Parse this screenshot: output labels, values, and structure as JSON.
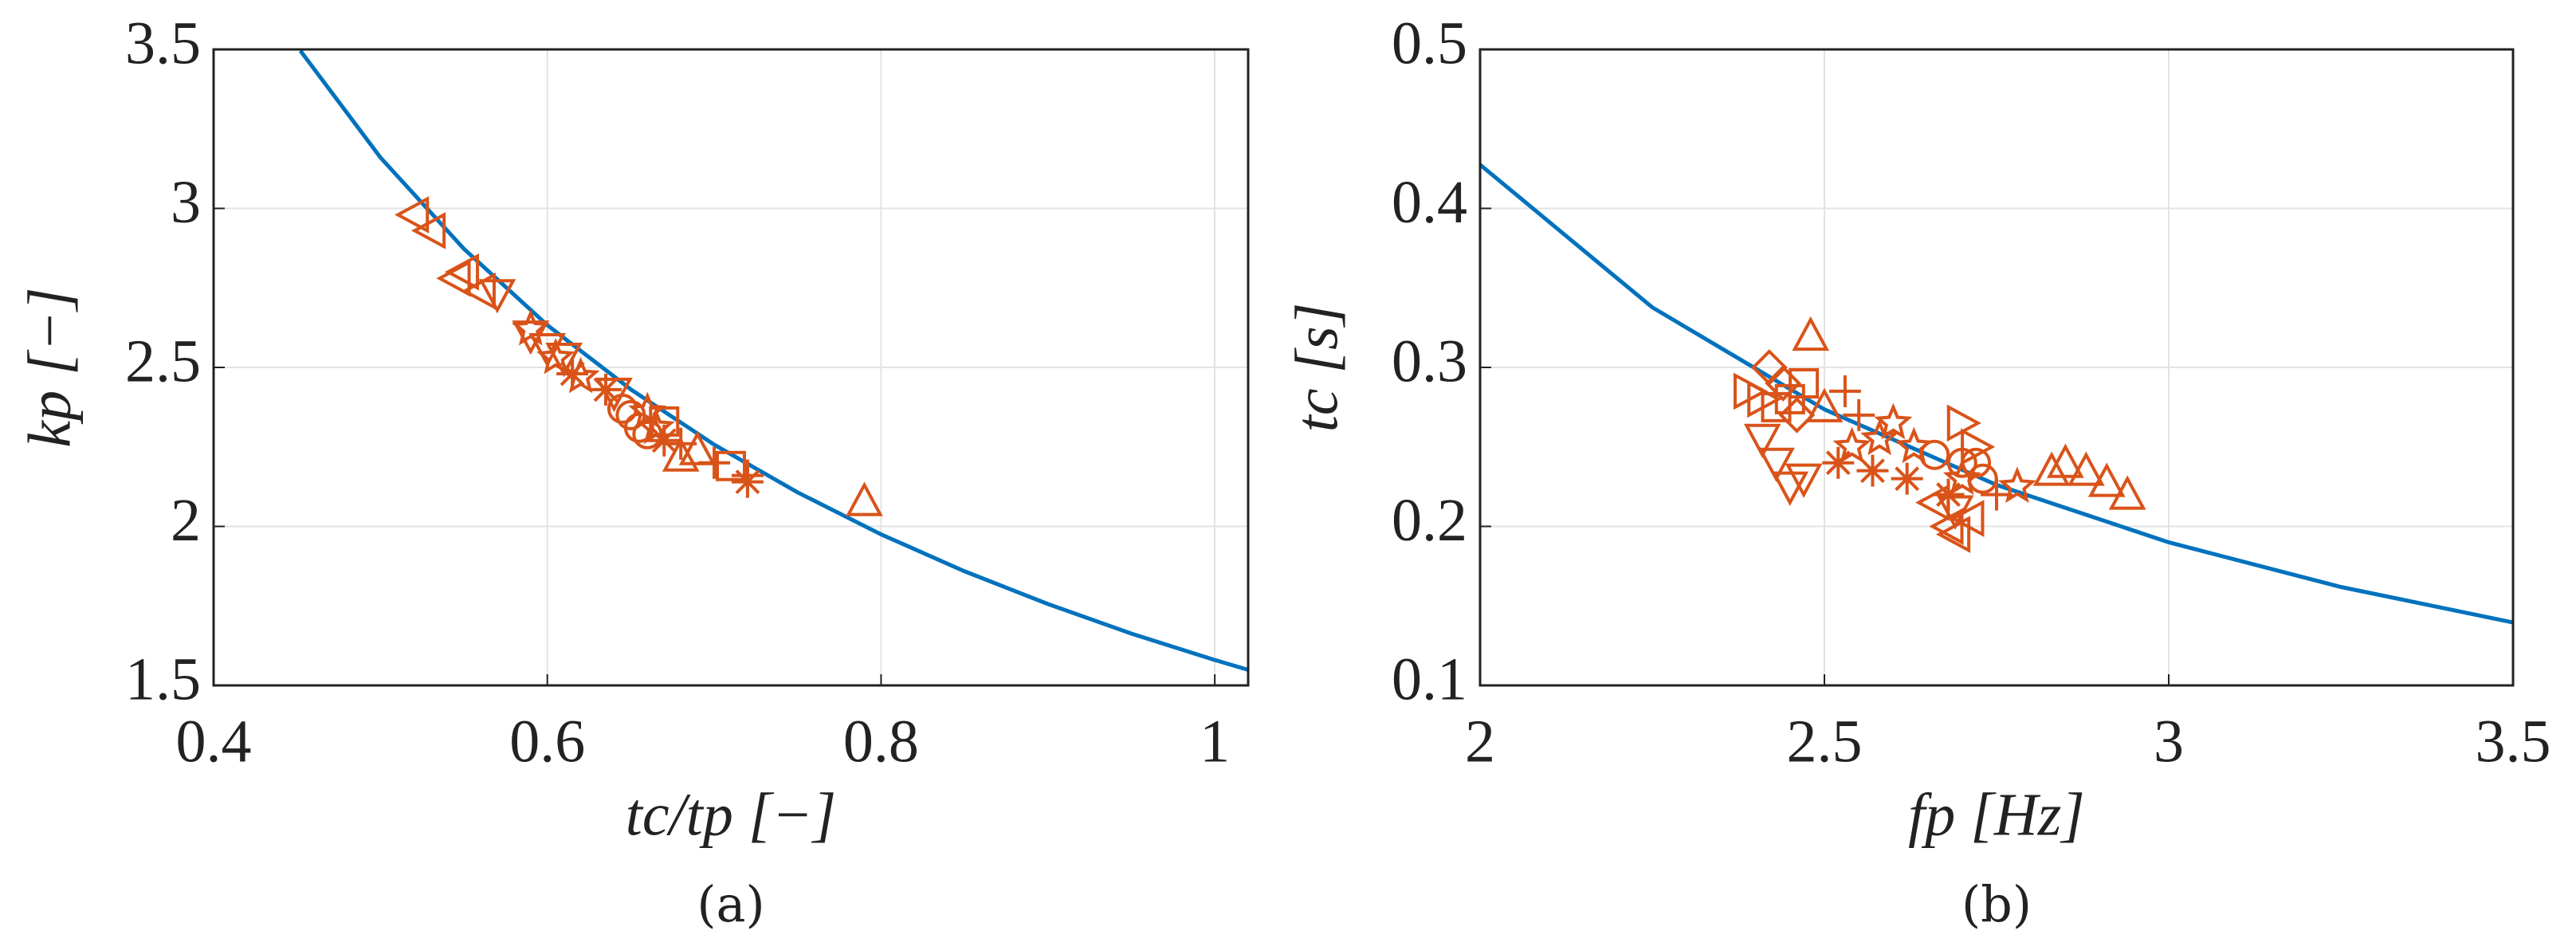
{
  "chart_data": [
    {
      "type": "scatter",
      "caption": "(a)",
      "xlabel": "tc/tp [−]",
      "ylabel": "kp [−]",
      "xlim": [
        0.4,
        1.02
      ],
      "ylim": [
        1.5,
        3.5
      ],
      "xticks": [
        0.4,
        0.6,
        0.8,
        1
      ],
      "yticks": [
        1.5,
        2,
        2.5,
        3,
        3.5
      ],
      "grid": true,
      "series": [
        {
          "style": "line",
          "color": "#0072bd",
          "x": [
            0.452,
            0.5,
            0.55,
            0.6,
            0.65,
            0.7,
            0.75,
            0.8,
            0.85,
            0.9,
            0.95,
            1.0,
            1.02
          ],
          "values": [
            3.496,
            3.16,
            2.873,
            2.633,
            2.431,
            2.257,
            2.107,
            1.975,
            1.859,
            1.756,
            1.663,
            1.58,
            1.549
          ]
        },
        {
          "style": "marker",
          "marker": "triangle-left",
          "color": "#d95319",
          "x": [
            0.52,
            0.53,
            0.55,
            0.545,
            0.56
          ],
          "values": [
            2.98,
            2.93,
            2.8,
            2.78,
            2.74
          ]
        },
        {
          "style": "marker",
          "marker": "triangle-down",
          "color": "#d95319",
          "x": [
            0.57,
            0.59,
            0.6,
            0.61,
            0.64
          ],
          "values": [
            2.73,
            2.6,
            2.56,
            2.53,
            2.42
          ]
        },
        {
          "style": "marker",
          "marker": "star",
          "color": "#d95319",
          "x": [
            0.59,
            0.605,
            0.62,
            0.66,
            0.665
          ],
          "values": [
            2.62,
            2.53,
            2.47,
            2.36,
            2.31
          ]
        },
        {
          "style": "marker",
          "marker": "asterisk",
          "color": "#d95319",
          "x": [
            0.615,
            0.635,
            0.72,
            0.67
          ],
          "values": [
            2.48,
            2.43,
            2.14,
            2.27
          ]
        },
        {
          "style": "marker",
          "marker": "circle",
          "color": "#d95319",
          "x": [
            0.645,
            0.65,
            0.66,
            0.655
          ],
          "values": [
            2.37,
            2.35,
            2.29,
            2.31
          ]
        },
        {
          "style": "marker",
          "marker": "plus",
          "color": "#d95319",
          "x": [
            0.7,
            0.72,
            0.68
          ],
          "values": [
            2.2,
            2.16,
            2.26
          ]
        },
        {
          "style": "marker",
          "marker": "square",
          "color": "#d95319",
          "x": [
            0.71,
            0.67
          ],
          "values": [
            2.19,
            2.33
          ]
        },
        {
          "style": "marker",
          "marker": "triangle-up",
          "color": "#d95319",
          "x": [
            0.68,
            0.69,
            0.79
          ],
          "values": [
            2.22,
            2.24,
            2.08
          ]
        }
      ]
    },
    {
      "type": "scatter",
      "caption": "(b)",
      "xlabel": "fp [Hz]",
      "ylabel": "tc [s]",
      "xlim": [
        2,
        3.5
      ],
      "ylim": [
        0.1,
        0.5
      ],
      "xticks": [
        2,
        2.5,
        3,
        3.5
      ],
      "yticks": [
        0.1,
        0.2,
        0.3,
        0.4,
        0.5
      ],
      "grid": true,
      "series": [
        {
          "style": "line",
          "color": "#0072bd",
          "x": [
            2,
            2.25,
            2.5,
            2.75,
            3,
            3.25,
            3.5
          ],
          "values": [
            0.4275,
            0.3378,
            0.2736,
            0.2261,
            0.19,
            0.1619,
            0.1396
          ]
        },
        {
          "style": "marker",
          "marker": "triangle-up",
          "color": "#d95319",
          "x": [
            2.48,
            2.83,
            2.85,
            2.88,
            2.91,
            2.94,
            2.5
          ],
          "values": [
            0.32,
            0.235,
            0.24,
            0.235,
            0.228,
            0.22,
            0.275
          ]
        },
        {
          "style": "marker",
          "marker": "triangle-right",
          "color": "#d95319",
          "x": [
            2.39,
            2.41,
            2.7,
            2.72
          ],
          "values": [
            0.285,
            0.28,
            0.265,
            0.25
          ]
        },
        {
          "style": "marker",
          "marker": "triangle-down",
          "color": "#d95319",
          "x": [
            2.41,
            2.43,
            2.45,
            2.47,
            2.69
          ],
          "values": [
            0.255,
            0.24,
            0.225,
            0.23,
            0.21
          ]
        },
        {
          "style": "marker",
          "marker": "diamond",
          "color": "#d95319",
          "x": [
            2.42,
            2.44,
            2.46
          ],
          "values": [
            0.3,
            0.29,
            0.27
          ]
        },
        {
          "style": "marker",
          "marker": "square",
          "color": "#d95319",
          "x": [
            2.43,
            2.45,
            2.47
          ],
          "values": [
            0.275,
            0.28,
            0.29
          ]
        },
        {
          "style": "marker",
          "marker": "plus",
          "color": "#d95319",
          "x": [
            2.53,
            2.55,
            2.75
          ],
          "values": [
            0.285,
            0.27,
            0.22
          ]
        },
        {
          "style": "marker",
          "marker": "star",
          "color": "#d95319",
          "x": [
            2.54,
            2.58,
            2.6,
            2.63,
            2.7,
            2.78
          ],
          "values": [
            0.25,
            0.255,
            0.265,
            0.25,
            0.23,
            0.225
          ]
        },
        {
          "style": "marker",
          "marker": "asterisk",
          "color": "#d95319",
          "x": [
            2.52,
            2.57,
            2.62,
            2.68
          ],
          "values": [
            0.24,
            0.235,
            0.23,
            0.22
          ]
        },
        {
          "style": "marker",
          "marker": "circle",
          "color": "#d95319",
          "x": [
            2.66,
            2.7,
            2.72,
            2.73
          ],
          "values": [
            0.245,
            0.24,
            0.24,
            0.23
          ]
        },
        {
          "style": "marker",
          "marker": "triangle-left",
          "color": "#d95319",
          "x": [
            2.66,
            2.69,
            2.71,
            2.68
          ],
          "values": [
            0.215,
            0.195,
            0.205,
            0.2
          ]
        }
      ]
    }
  ]
}
